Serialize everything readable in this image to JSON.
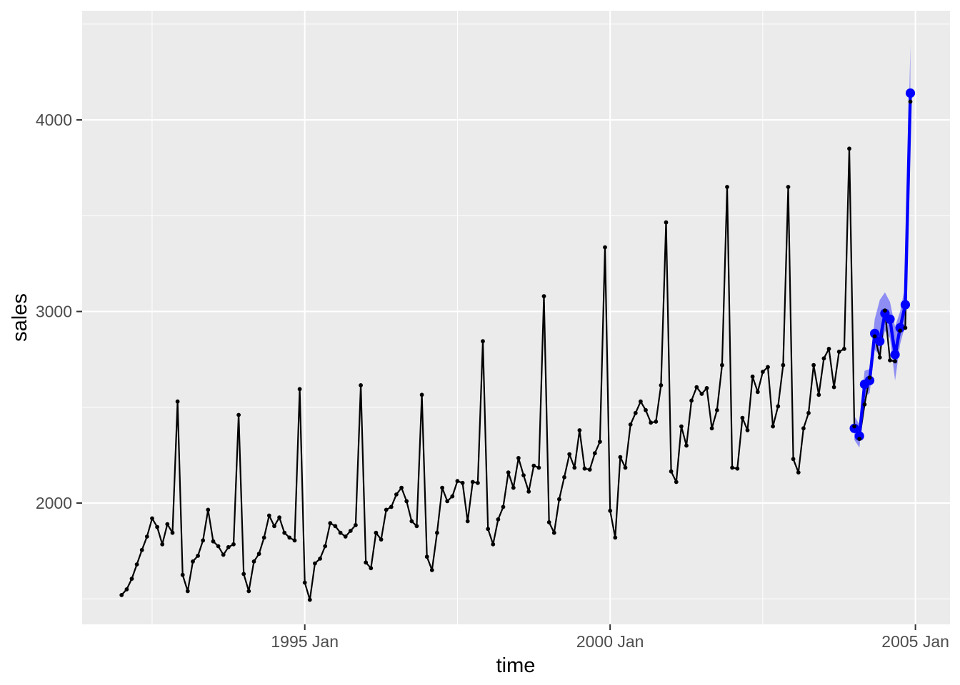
{
  "style": {
    "background": "#FFFFFF",
    "panel_bg": "#EBEBEB",
    "grid_color": "#FFFFFF",
    "tick_color": "#333333",
    "tick_label_color": "#4D4D4D",
    "axis_title_color": "#000000",
    "observed_color": "#000000",
    "fitted_color": "#0000FF",
    "ribbon_color": "#0000FF",
    "ribbon_opacity": 0.4
  },
  "chart_data": {
    "type": "line",
    "title": "",
    "xlabel": "time",
    "ylabel": "sales",
    "legend": "none",
    "grid": true,
    "xlim": [
      1991.354,
      2005.566
    ],
    "ylim": [
      1367,
      4570
    ],
    "x_major_ticks": [
      {
        "pos": 1995,
        "label": "1995 Jan"
      },
      {
        "pos": 2000,
        "label": "2000 Jan"
      },
      {
        "pos": 2005,
        "label": "2005 Jan"
      }
    ],
    "x_minor": [
      1992.5,
      1997.5,
      2002.5
    ],
    "y_major_ticks": [
      {
        "pos": 2000,
        "label": "2000"
      },
      {
        "pos": 3000,
        "label": "3000"
      },
      {
        "pos": 4000,
        "label": "4000"
      }
    ],
    "y_minor": [
      1500,
      2500,
      3500,
      4500
    ],
    "series": [
      {
        "name": "observed-sales",
        "kind": "line+points",
        "color": "#000000",
        "start_year": 1992,
        "step_months": 1,
        "point_radius": 2.9,
        "line_width": 2.2,
        "values": [
          1520,
          1550,
          1605,
          1680,
          1755,
          1825,
          1920,
          1875,
          1785,
          1890,
          1845,
          2530,
          1625,
          1540,
          1695,
          1725,
          1805,
          1965,
          1800,
          1775,
          1730,
          1770,
          1785,
          2460,
          1630,
          1540,
          1695,
          1735,
          1820,
          1935,
          1880,
          1925,
          1845,
          1820,
          1805,
          2595,
          1585,
          1495,
          1685,
          1710,
          1775,
          1895,
          1880,
          1845,
          1825,
          1855,
          1885,
          2615,
          1690,
          1660,
          1845,
          1810,
          1965,
          1980,
          2045,
          2080,
          2010,
          1905,
          1880,
          2565,
          1720,
          1650,
          1845,
          2080,
          2010,
          2035,
          2115,
          2105,
          1905,
          2110,
          2105,
          2845,
          1865,
          1785,
          1915,
          1980,
          2160,
          2080,
          2235,
          2145,
          2060,
          2195,
          2185,
          3080,
          1900,
          1845,
          2020,
          2135,
          2255,
          2185,
          2380,
          2180,
          2175,
          2260,
          2320,
          3335,
          1960,
          1820,
          2240,
          2185,
          2410,
          2470,
          2530,
          2485,
          2420,
          2425,
          2615,
          3465,
          2165,
          2110,
          2400,
          2300,
          2535,
          2605,
          2570,
          2600,
          2390,
          2485,
          2720,
          3650,
          2185,
          2180,
          2445,
          2380,
          2660,
          2580,
          2685,
          2710,
          2400,
          2505,
          2720,
          3650,
          2230,
          2160,
          2390,
          2470,
          2720,
          2565,
          2755,
          2805,
          2605,
          2790,
          2805,
          3850,
          2400,
          2335,
          2515,
          2655,
          2870,
          2760,
          3005,
          2745,
          2740,
          2900,
          2915,
          4095
        ]
      },
      {
        "name": "fitted-sales-2004",
        "kind": "line+points",
        "color": "#0000FF",
        "start_year": 2004,
        "step_months": 1,
        "point_radius": 6.6,
        "line_width": 4.4,
        "values": [
          2390,
          2350,
          2620,
          2640,
          2885,
          2845,
          2990,
          2960,
          2775,
          2915,
          3035,
          4140
        ]
      }
    ],
    "ribbon": {
      "name": "fitted-interval-2004",
      "start_year": 2004,
      "step_months": 1,
      "lo": [
        2330,
        2290,
        2550,
        2575,
        2800,
        2770,
        2900,
        2860,
        2640,
        2830,
        2930,
        4100
      ],
      "hi": [
        2455,
        2410,
        2690,
        2700,
        2960,
        3060,
        3100,
        3050,
        2920,
        3000,
        3135,
        4390
      ]
    }
  }
}
